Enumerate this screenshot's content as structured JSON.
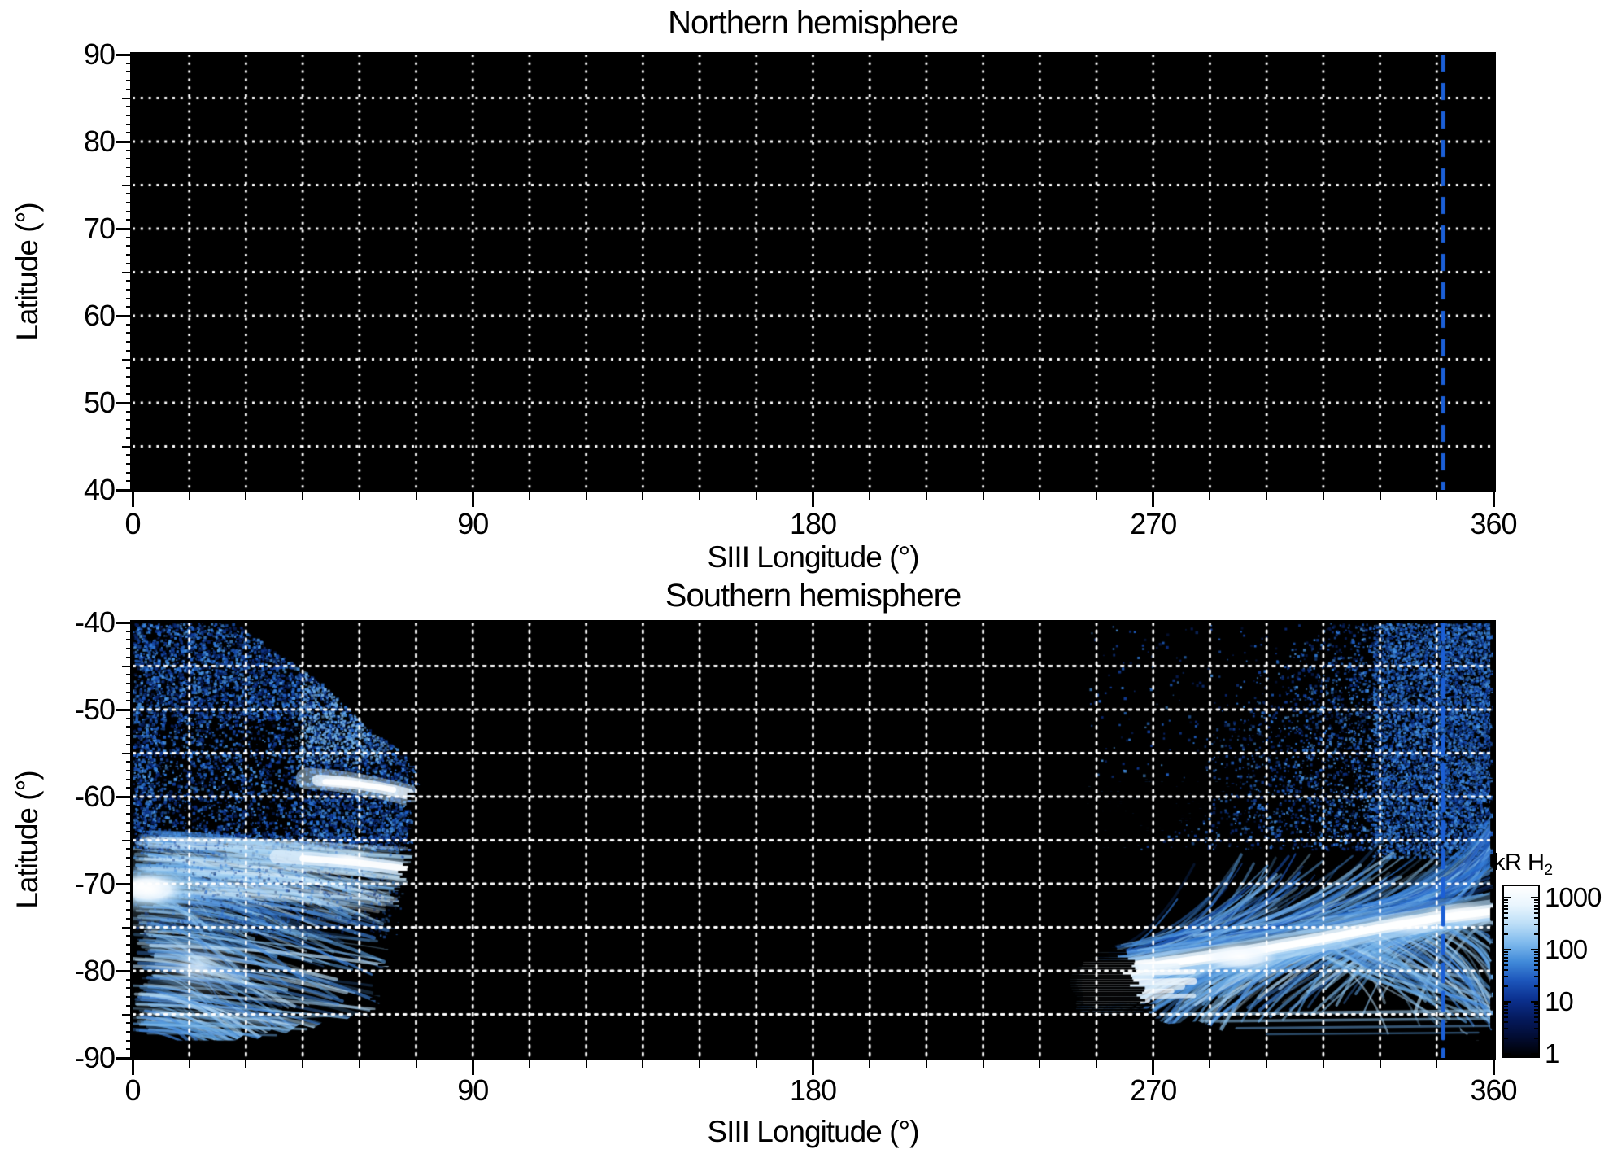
{
  "chart_data": {
    "type": "heatmap",
    "description": "Auroral H2 emission maps versus SIII longitude and latitude, northern and southern hemispheres, log color scale in kilorayleighs",
    "panels": [
      {
        "id": "north",
        "title": "Northern hemisphere",
        "xlabel": "SIII Longitude (°)",
        "ylabel": "Latitude (°)",
        "xlim": [
          0,
          360
        ],
        "ylim": [
          40,
          90
        ],
        "xticks": [
          0,
          90,
          180,
          270,
          360
        ],
        "xtick_labels": [
          "0",
          "90",
          "180",
          "270",
          "360"
        ],
        "yticks": [
          90,
          80,
          70,
          60,
          50,
          40
        ],
        "ytick_labels": [
          "90",
          "80",
          "70",
          "60",
          "50",
          "40"
        ],
        "x_minor_step": 15,
        "y_minor_step": 1,
        "grid": {
          "x_step": 15,
          "y_step": 5,
          "color": "#ffffff",
          "style": "dotted"
        },
        "background": "#000000",
        "marker_line": {
          "lon": 346.7,
          "color": "#1b5fd6",
          "style": "dashed"
        },
        "content": "no emission data (black field)"
      },
      {
        "id": "south",
        "title": "Southern hemisphere",
        "xlabel": "SIII Longitude (°)",
        "ylabel": "Latitude (°)",
        "xlim": [
          0,
          360
        ],
        "ylim": [
          -90,
          -40
        ],
        "xticks": [
          0,
          90,
          180,
          270,
          360
        ],
        "xtick_labels": [
          "0",
          "90",
          "180",
          "270",
          "360"
        ],
        "yticks": [
          -40,
          -50,
          -60,
          -70,
          -80,
          -90
        ],
        "ytick_labels": [
          "-40",
          "-50",
          "-60",
          "-70",
          "-80",
          "-90"
        ],
        "x_minor_step": 15,
        "y_minor_step": 1,
        "grid": {
          "x_step": 15,
          "y_step": 5,
          "color": "#ffffff",
          "style": "dotted"
        },
        "background": "#000000",
        "marker_line": {
          "lon": 346.7,
          "color": "#1b5fd6",
          "style": "dashed"
        },
        "right_edge_dashed_line": {
          "lon": 360,
          "color": "#000000"
        },
        "no_data_longitudes": [
          78,
          252
        ],
        "no_data_below_latitude": -88,
        "features": [
          {
            "type": "speckle_field",
            "lon": [
              0,
              78
            ],
            "lat": [
              -40,
              -66
            ],
            "top_boundary": [
              [
                0,
                -40
              ],
              [
                27,
                -40
              ],
              [
                50,
                -47
              ],
              [
                62,
                -52
              ],
              [
                78,
                -57
              ]
            ],
            "dark_subregion": {
              "lon": [
                6,
                46
              ],
              "lat": [
                -51,
                -64
              ]
            },
            "intensity_kR": [
              1,
              40
            ]
          },
          {
            "type": "streak_field",
            "lon": [
              0,
              74
            ],
            "lat": [
              -64,
              -88
            ],
            "right_cutoff": [
              [
                -40,
                78
              ],
              [
                -52,
                77
              ],
              [
                -64,
                75
              ],
              [
                -74,
                72
              ],
              [
                -82,
                67
              ],
              [
                -88,
                62
              ]
            ],
            "intensity_kR": [
              20,
              300
            ]
          },
          {
            "type": "bright_spot",
            "lon_center": 4.5,
            "lat_center": -70.6,
            "lon_extent": [
              0,
              18
            ],
            "peak_kR": 1000
          },
          {
            "type": "bright_arc",
            "lon": [
              46,
              76
            ],
            "lat_center": -58.5,
            "peak_kR": 700
          },
          {
            "type": "bright_band",
            "lon": [
              28,
              76
            ],
            "lat_center": -67.3,
            "peak_kR": 900
          },
          {
            "type": "bright_patch",
            "lon": [
              12,
              24
            ],
            "lat": [
              -78,
              -81.5
            ],
            "peak_kR": 400
          },
          {
            "type": "speckle_field",
            "lon": [
              288,
              360
            ],
            "lat": [
              -40,
              -66
            ],
            "left_boundary": [
              [
                -40,
                330
              ],
              [
                -46,
                316
              ],
              [
                -53,
                303
              ],
              [
                -64,
                292
              ]
            ],
            "intensity_kR": [
              1,
              40
            ]
          },
          {
            "type": "fan_streaks",
            "lon": [
              252,
              360
            ],
            "lat": [
              -58,
              -74
            ],
            "intensity_kR": [
              10,
              150
            ]
          },
          {
            "type": "main_oval",
            "path": [
              [
                253,
                -81.3
              ],
              [
                260,
                -80.3
              ],
              [
                267,
                -79.6
              ],
              [
                280,
                -78.8
              ],
              [
                295,
                -77.9
              ],
              [
                312,
                -76.6
              ],
              [
                330,
                -75.1
              ],
              [
                345,
                -74.0
              ],
              [
                360,
                -73.2
              ]
            ],
            "hot_spots": [
              [
                257,
                -81.3
              ],
              [
                293,
                -78.2
              ],
              [
                338,
                -74.6
              ],
              [
                352,
                -73.3
              ]
            ],
            "peak_kR": 1500
          },
          {
            "type": "streak_field",
            "lon": [
              252,
              360
            ],
            "lat": [
              -74,
              -88
            ],
            "intensity_kR": [
              20,
              300
            ]
          }
        ]
      }
    ],
    "colorbar": {
      "title_main": "kR H",
      "title_sub": "2",
      "scale": "log",
      "range_kR": [
        1,
        1600
      ],
      "tick_values": [
        1000,
        100,
        10,
        1
      ],
      "tick_labels": [
        "1000",
        "100",
        "10",
        "1"
      ],
      "gradient": [
        "#ffffff",
        "#e9f5fd",
        "#bcdef7",
        "#7fbaed",
        "#418ad9",
        "#1c55bb",
        "#0b308e",
        "#051a5e",
        "#020c32",
        "#000000"
      ]
    }
  }
}
